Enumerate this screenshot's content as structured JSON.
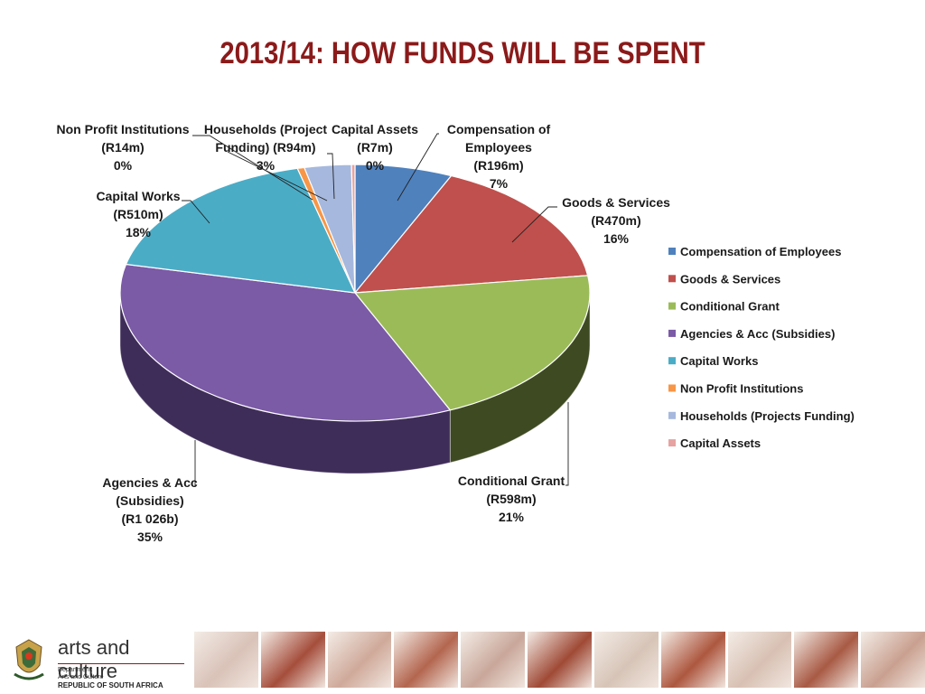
{
  "title": "2013/14:  HOW FUNDS WILL BE SPENT",
  "chart_data": {
    "type": "pie",
    "title": "",
    "slices": [
      {
        "name": "Compensation of Employees",
        "amount": "R196m",
        "value": 196,
        "percent": "7%",
        "color": "#4F81BD",
        "dark": "#2E4D74",
        "label_lines": [
          "Compensation of",
          "Employees",
          "(R196m)",
          "7%"
        ]
      },
      {
        "name": "Goods & Services",
        "amount": "R470m",
        "value": 470,
        "percent": "16%",
        "color": "#C0504D",
        "dark": "#7A2F2D",
        "label_lines": [
          "Goods & Services",
          "(R470m)",
          "16%"
        ]
      },
      {
        "name": "Conditional Grant",
        "amount": "R598m",
        "value": 598,
        "percent": "21%",
        "color": "#9BBB59",
        "dark": "#3E4A22",
        "label_lines": [
          "Conditional Grant",
          "(R598m)",
          "21%"
        ]
      },
      {
        "name": "Agencies & Acc (Subsidies)",
        "amount": "R1 026b",
        "value": 1026,
        "percent": "35%",
        "color": "#7B5AA6",
        "dark": "#3F2D59",
        "label_lines": [
          "Agencies & Acc",
          "(Subsidies)",
          "(R1 026b)",
          "35%"
        ]
      },
      {
        "name": "Capital Works",
        "amount": "R510m",
        "value": 510,
        "percent": "18%",
        "color": "#4BACC6",
        "dark": "#2A6878",
        "label_lines": [
          "Capital Works",
          "(R510m)",
          "18%"
        ]
      },
      {
        "name": "Non Profit Institutions",
        "amount": "R14m",
        "value": 14,
        "percent": "0%",
        "color": "#F79646",
        "dark": "#9A5620",
        "label_lines": [
          "Non Profit Institutions",
          "(R14m)",
          "0%"
        ]
      },
      {
        "name": "Households (Projects Funding)",
        "amount": "R94m",
        "value": 94,
        "percent": "3%",
        "color": "#A6B8DD",
        "dark": "#5E6E91",
        "label_lines": [
          "Households (Project",
          "Funding)  (R94m)",
          "3%"
        ]
      },
      {
        "name": "Capital Assets",
        "amount": "R7m",
        "value": 7,
        "percent": "0%",
        "color": "#E6A3A1",
        "dark": "#8A5352",
        "label_lines": [
          "Capital Assets",
          "(R7m)",
          "0%"
        ]
      }
    ],
    "legend": {
      "placement": "right",
      "entries": [
        "Compensation of Employees",
        "Goods & Services",
        "Conditional Grant",
        "Agencies & Acc (Subsidies)",
        "Capital Works",
        "Non Profit Institutions",
        "Households (Projects Funding)",
        "Capital Assets"
      ]
    }
  },
  "footer": {
    "brand": "arts and culture",
    "dept_line1": "Department:",
    "dept_line2": "Arts and Culture",
    "dept_line3": "REPUBLIC OF SOUTH AFRICA",
    "tile_colors": [
      "#d9c2b8",
      "#a54e3c",
      "#cfa99a",
      "#b3664f",
      "#c9a79a",
      "#9f4a36",
      "#d7c4b7",
      "#ad573f",
      "#d8c0b3",
      "#a85a44",
      "#c9a090"
    ]
  }
}
